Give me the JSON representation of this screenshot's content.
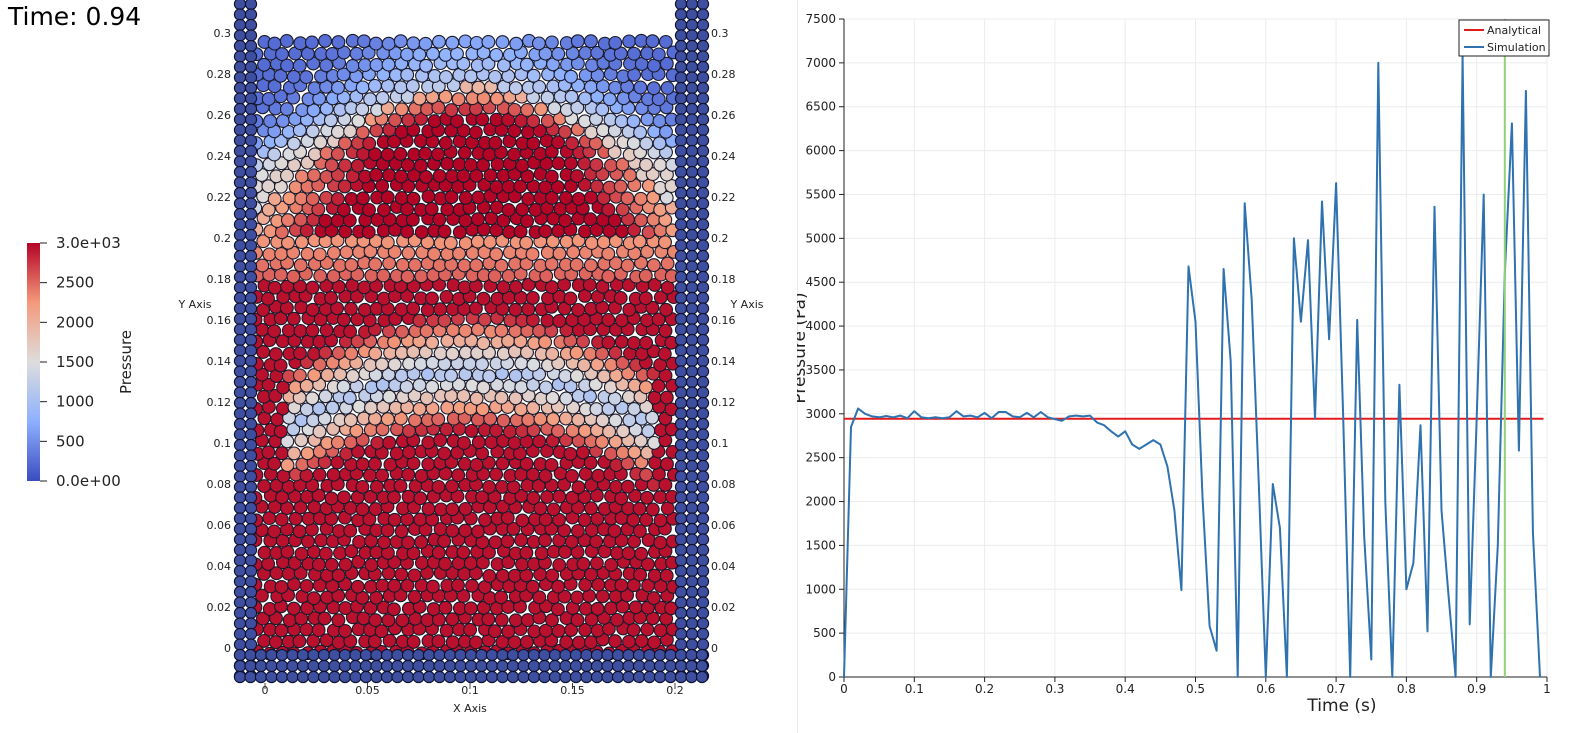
{
  "time_label": "Time: 0.94",
  "colorbar": {
    "title": "Pressure",
    "labels": [
      "3.0e+03",
      "2500",
      "2000",
      "1500",
      "1000",
      "500",
      "0.0e+00"
    ],
    "colors": [
      "#3b4cc0",
      "#8db0fe",
      "#dddddd",
      "#f49a7b",
      "#b40426"
    ]
  },
  "particle_view": {
    "x_axis_label": "X Axis",
    "y_axis_label_left": "Y Axis",
    "y_axis_label_right": "Y Axis",
    "x_ticks": [
      "0",
      "0.05",
      "0.1",
      "0.15",
      "0.2"
    ],
    "y_ticks": [
      "0",
      "0.02",
      "0.04",
      "0.06",
      "0.08",
      "0.1",
      "0.12",
      "0.14",
      "0.16",
      "0.18",
      "0.2",
      "0.22",
      "0.24",
      "0.26",
      "0.28",
      "0.3"
    ],
    "wall_color": "#3f4fa0"
  },
  "chart_data": {
    "type": "line",
    "xlabel": "Time (s)",
    "ylabel": "Pressure (Pa)",
    "xlim": [
      0,
      1
    ],
    "ylim": [
      0,
      7500
    ],
    "x_ticks": [
      "0",
      "0.1",
      "0.2",
      "0.3",
      "0.4",
      "0.5",
      "0.6",
      "0.7",
      "0.8",
      "0.9",
      "1"
    ],
    "y_ticks": [
      "0",
      "500",
      "1000",
      "1500",
      "2000",
      "2500",
      "3000",
      "3500",
      "4000",
      "4500",
      "5000",
      "5500",
      "6000",
      "6500",
      "7000",
      "7500"
    ],
    "grid": true,
    "legend_position": "top-right",
    "current_time": 0.94,
    "current_time_color": "#8fd17a",
    "series": [
      {
        "name": "Analytical",
        "color": "#e31a1c",
        "x": [
          0,
          0.995
        ],
        "y": [
          2943,
          2943
        ]
      },
      {
        "name": "Simulation",
        "color": "#2f72b0",
        "x": [
          0,
          0.01,
          0.02,
          0.03,
          0.04,
          0.05,
          0.06,
          0.07,
          0.08,
          0.09,
          0.1,
          0.11,
          0.12,
          0.13,
          0.14,
          0.15,
          0.16,
          0.17,
          0.18,
          0.19,
          0.2,
          0.21,
          0.22,
          0.23,
          0.24,
          0.25,
          0.26,
          0.27,
          0.28,
          0.29,
          0.3,
          0.31,
          0.32,
          0.33,
          0.34,
          0.35,
          0.36,
          0.37,
          0.38,
          0.39,
          0.4,
          0.41,
          0.42,
          0.43,
          0.44,
          0.45,
          0.46,
          0.47,
          0.48,
          0.49,
          0.5,
          0.51,
          0.52,
          0.53,
          0.54,
          0.55,
          0.56,
          0.57,
          0.58,
          0.59,
          0.6,
          0.61,
          0.62,
          0.63,
          0.64,
          0.65,
          0.66,
          0.67,
          0.68,
          0.69,
          0.7,
          0.71,
          0.72,
          0.73,
          0.74,
          0.75,
          0.76,
          0.77,
          0.78,
          0.79,
          0.8,
          0.81,
          0.82,
          0.83,
          0.84,
          0.85,
          0.86,
          0.87,
          0.88,
          0.89,
          0.9,
          0.91,
          0.92,
          0.93,
          0.94,
          0.95,
          0.96,
          0.97,
          0.98,
          0.99
        ],
        "y": [
          0,
          2850,
          3060,
          3000,
          2970,
          2960,
          2975,
          2960,
          2980,
          2950,
          3030,
          2960,
          2950,
          2960,
          2950,
          2960,
          3030,
          2970,
          2980,
          2960,
          3010,
          2950,
          3020,
          3020,
          2970,
          2960,
          3010,
          2960,
          3020,
          2960,
          2940,
          2920,
          2970,
          2980,
          2970,
          2980,
          2900,
          2870,
          2800,
          2740,
          2800,
          2650,
          2600,
          2650,
          2700,
          2650,
          2400,
          1900,
          990,
          4680,
          4050,
          2050,
          580,
          300,
          4650,
          3600,
          0,
          5400,
          4300,
          2200,
          0,
          2200,
          1700,
          0,
          5000,
          4050,
          4980,
          2950,
          5420,
          3850,
          5630,
          3000,
          0,
          4070,
          1600,
          200,
          7000,
          2000,
          0,
          3330,
          1000,
          1300,
          2870,
          520,
          5360,
          1900,
          920,
          0,
          7080,
          600,
          2950,
          5500,
          0,
          1500,
          4600,
          6310,
          2580,
          6680,
          1650,
          0
        ]
      }
    ]
  }
}
